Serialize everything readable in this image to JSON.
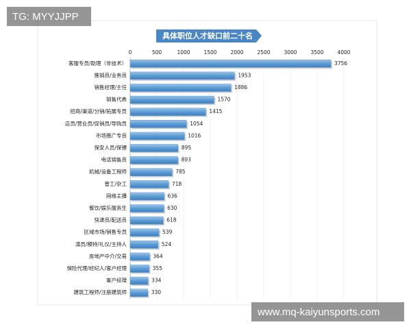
{
  "chart_data": {
    "type": "bar",
    "orientation": "horizontal",
    "title": "具体职位人才缺口前二十名",
    "categories": [
      "客服专员/助理（非技术）",
      "推销员/业务员",
      "销售经理/主任",
      "销售代表",
      "招商/渠道/分销/拓展专员",
      "店员/营业员/促销员/导购员",
      "市场推广专员",
      "保安人员/保镖",
      "电话销售员",
      "机械/设备工程师",
      "普工/杂工",
      "网络主播",
      "餐饮/娱乐服务生",
      "快递员/配送员",
      "区域市场/销售专员",
      "演员/模特/礼仪/主持人",
      "房地产中介/交易",
      "保险代理/经纪人/客户经理",
      "客户经理",
      "建筑工程师/注册建筑师"
    ],
    "values": [
      3756,
      1953,
      1886,
      1570,
      1415,
      1054,
      1016,
      895,
      893,
      785,
      718,
      636,
      630,
      618,
      539,
      524,
      364,
      355,
      334,
      330
    ],
    "color": "#5b9bd5",
    "xlim": [
      0,
      4000
    ],
    "xticks": [
      0,
      500,
      1000,
      1500,
      2000,
      2500,
      3000,
      3500,
      4000
    ],
    "grid": true
  },
  "overlay_labels": [
    "TG: MYYJJPP",
    "www.mq-kaiyunsports.com"
  ]
}
